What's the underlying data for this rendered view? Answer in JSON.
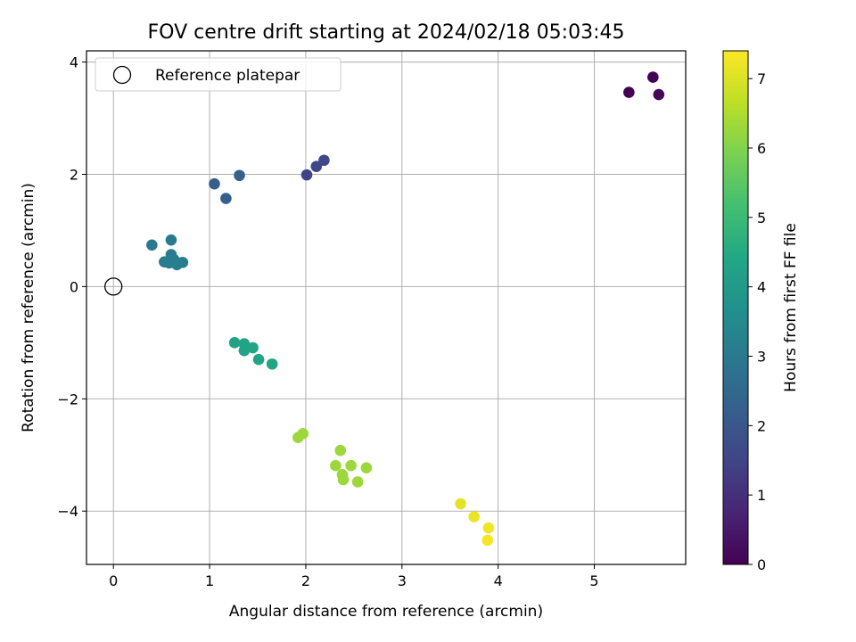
{
  "chart_data": {
    "type": "scatter",
    "title": "FOV centre drift starting at 2024/02/18 05:03:45",
    "xlabel": "Angular distance from reference (arcmin)",
    "ylabel": "Rotation from reference (arcmin)",
    "xlim": [
      -0.28,
      5.95
    ],
    "ylim": [
      -4.95,
      4.2
    ],
    "xticks": [
      0,
      1,
      2,
      3,
      4,
      5
    ],
    "xtick_labels": [
      "0",
      "1",
      "2",
      "3",
      "4",
      "5"
    ],
    "yticks": [
      -4,
      -2,
      0,
      2,
      4
    ],
    "ytick_labels": [
      "−4",
      "−2",
      "0",
      "2",
      "4"
    ],
    "grid": true,
    "legend": {
      "placement": "top-left",
      "entries": [
        "Reference platepar"
      ]
    },
    "reference_point": {
      "x": 0,
      "y": 0
    },
    "colorbar": {
      "label": "Hours from first FF file",
      "colormap": "viridis",
      "range": [
        0,
        7.4
      ],
      "ticks": [
        0,
        1,
        2,
        3,
        4,
        5,
        6,
        7
      ],
      "tick_labels": [
        "0",
        "1",
        "2",
        "3",
        "4",
        "5",
        "6",
        "7"
      ]
    },
    "points": [
      {
        "x": 5.36,
        "y": 3.46,
        "c": 0.0
      },
      {
        "x": 5.61,
        "y": 3.73,
        "c": 0.05
      },
      {
        "x": 5.67,
        "y": 3.42,
        "c": 0.1
      },
      {
        "x": 2.01,
        "y": 1.99,
        "c": 1.5
      },
      {
        "x": 2.11,
        "y": 2.14,
        "c": 1.55
      },
      {
        "x": 2.19,
        "y": 2.25,
        "c": 1.6
      },
      {
        "x": 1.05,
        "y": 1.83,
        "c": 2.2
      },
      {
        "x": 1.17,
        "y": 1.57,
        "c": 2.25
      },
      {
        "x": 1.31,
        "y": 1.98,
        "c": 2.3
      },
      {
        "x": 0.4,
        "y": 0.74,
        "c": 3.0
      },
      {
        "x": 0.6,
        "y": 0.83,
        "c": 3.0
      },
      {
        "x": 0.6,
        "y": 0.57,
        "c": 3.05
      },
      {
        "x": 0.53,
        "y": 0.44,
        "c": 3.05
      },
      {
        "x": 0.58,
        "y": 0.42,
        "c": 3.1
      },
      {
        "x": 0.63,
        "y": 0.48,
        "c": 3.1
      },
      {
        "x": 0.66,
        "y": 0.39,
        "c": 3.1
      },
      {
        "x": 0.72,
        "y": 0.43,
        "c": 3.15
      },
      {
        "x": 1.26,
        "y": -1.0,
        "c": 4.2
      },
      {
        "x": 1.36,
        "y": -1.02,
        "c": 4.25
      },
      {
        "x": 1.36,
        "y": -1.14,
        "c": 4.25
      },
      {
        "x": 1.45,
        "y": -1.09,
        "c": 4.3
      },
      {
        "x": 1.51,
        "y": -1.3,
        "c": 4.3
      },
      {
        "x": 1.65,
        "y": -1.38,
        "c": 4.35
      },
      {
        "x": 1.92,
        "y": -2.69,
        "c": 6.3
      },
      {
        "x": 1.97,
        "y": -2.62,
        "c": 6.3
      },
      {
        "x": 2.36,
        "y": -2.92,
        "c": 6.3
      },
      {
        "x": 2.31,
        "y": -3.19,
        "c": 6.3
      },
      {
        "x": 2.38,
        "y": -3.35,
        "c": 6.3
      },
      {
        "x": 2.39,
        "y": -3.44,
        "c": 6.3
      },
      {
        "x": 2.47,
        "y": -3.19,
        "c": 6.3
      },
      {
        "x": 2.54,
        "y": -3.48,
        "c": 6.3
      },
      {
        "x": 2.63,
        "y": -3.23,
        "c": 6.3
      },
      {
        "x": 3.61,
        "y": -3.87,
        "c": 7.1
      },
      {
        "x": 3.75,
        "y": -4.1,
        "c": 7.2
      },
      {
        "x": 3.9,
        "y": -4.3,
        "c": 7.25
      },
      {
        "x": 3.89,
        "y": -4.52,
        "c": 7.3
      }
    ]
  }
}
